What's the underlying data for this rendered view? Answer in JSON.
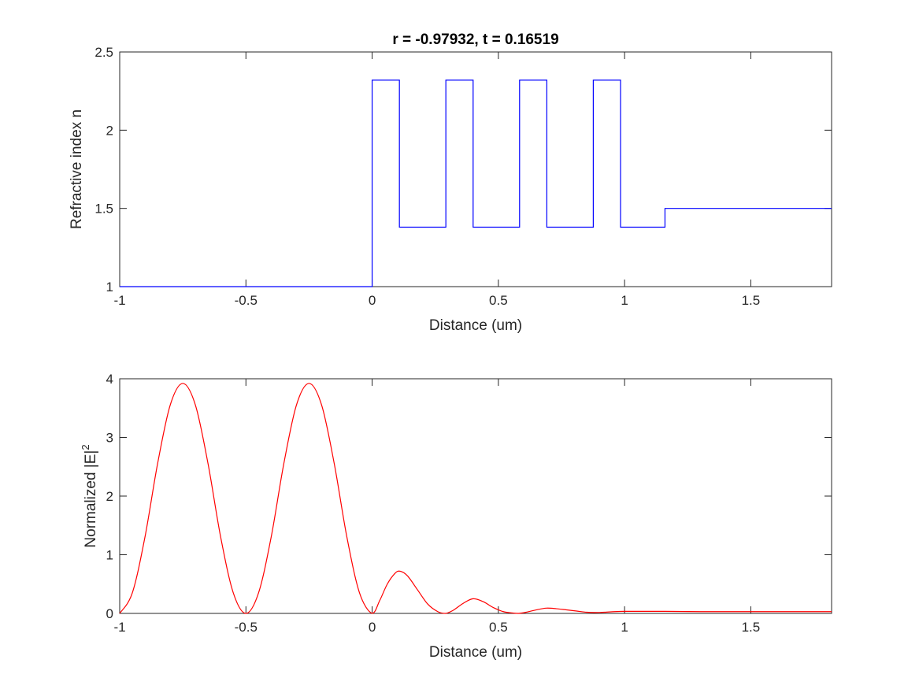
{
  "chart_data": [
    {
      "type": "line",
      "title": "r = -0.97932, t = 0.16519",
      "xlabel": "Distance (um)",
      "ylabel": "Refractive index n",
      "xlim": [
        -1,
        1.82
      ],
      "ylim": [
        1,
        2.5
      ],
      "xticks": [
        -1,
        -0.5,
        0,
        0.5,
        1,
        1.5
      ],
      "xtick_labels": [
        "-1",
        "-0.5",
        "0",
        "0.5",
        "1",
        "1.5"
      ],
      "yticks": [
        1,
        1.5,
        2,
        2.5
      ],
      "ytick_labels": [
        "1",
        "1.5",
        "2",
        "2.5"
      ],
      "grid": false,
      "series": [
        {
          "color": "#0000ff",
          "step": true,
          "x": [
            -1,
            0,
            0.108,
            0.292,
            0.4,
            0.584,
            0.692,
            0.876,
            0.984,
            1.16,
            1.82
          ],
          "y": [
            1,
            2.32,
            1.38,
            2.32,
            1.38,
            2.32,
            1.38,
            2.32,
            1.38,
            1.5,
            1.5
          ]
        }
      ]
    },
    {
      "type": "line",
      "title": "",
      "xlabel": "Distance (um)",
      "ylabel": "Normalized |E|",
      "ylabel_superscript": "2",
      "xlim": [
        -1,
        1.82
      ],
      "ylim": [
        0,
        4
      ],
      "xticks": [
        -1,
        -0.5,
        0,
        0.5,
        1,
        1.5
      ],
      "xtick_labels": [
        "-1",
        "-0.5",
        "0",
        "0.5",
        "1",
        "1.5"
      ],
      "yticks": [
        0,
        1,
        2,
        3,
        4
      ],
      "ytick_labels": [
        "0",
        "1",
        "2",
        "3",
        "4"
      ],
      "grid": false,
      "series": [
        {
          "color": "#ff0000",
          "x": [
            -1,
            -0.95,
            -0.9,
            -0.85,
            -0.8,
            -0.75,
            -0.7,
            -0.65,
            -0.6,
            -0.55,
            -0.5,
            -0.45,
            -0.4,
            -0.35,
            -0.3,
            -0.25,
            -0.2,
            -0.15,
            -0.1,
            -0.05,
            0,
            0.03,
            0.06,
            0.09,
            0.11,
            0.14,
            0.18,
            0.22,
            0.26,
            0.29,
            0.32,
            0.36,
            0.4,
            0.44,
            0.48,
            0.52,
            0.56,
            0.58,
            0.61,
            0.65,
            0.69,
            0.73,
            0.77,
            0.81,
            0.85,
            0.88,
            0.92,
            0.96,
            1.0,
            1.05,
            1.16,
            1.3,
            1.5,
            1.7,
            1.82
          ],
          "y": [
            0,
            0.35,
            1.3,
            2.55,
            3.55,
            3.92,
            3.55,
            2.55,
            1.3,
            0.35,
            0,
            0.35,
            1.3,
            2.55,
            3.55,
            3.92,
            3.55,
            2.55,
            1.3,
            0.35,
            0,
            0.22,
            0.5,
            0.68,
            0.72,
            0.64,
            0.4,
            0.16,
            0.03,
            0,
            0.05,
            0.17,
            0.25,
            0.2,
            0.1,
            0.03,
            0.005,
            0,
            0.02,
            0.06,
            0.09,
            0.08,
            0.06,
            0.04,
            0.02,
            0.015,
            0.02,
            0.03,
            0.035,
            0.035,
            0.035,
            0.03,
            0.03,
            0.03,
            0.03
          ]
        }
      ]
    }
  ]
}
